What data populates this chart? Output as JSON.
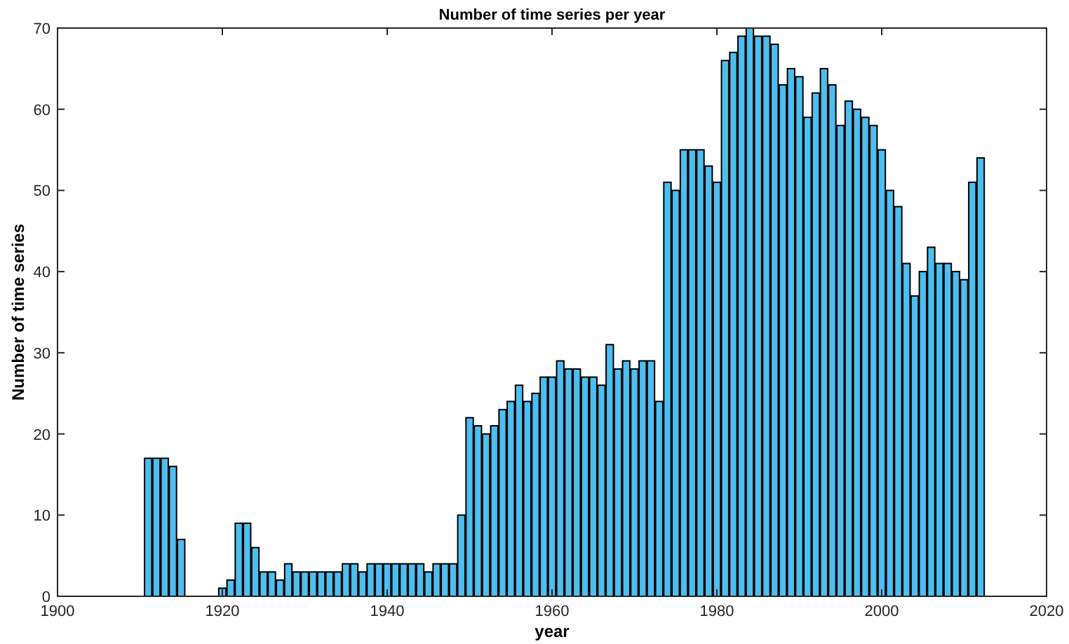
{
  "chart_data": {
    "type": "bar",
    "title": "Number of time series per year",
    "xlabel": "year",
    "ylabel": "Number of time series",
    "x": [
      1911,
      1912,
      1913,
      1914,
      1915,
      1920,
      1921,
      1922,
      1923,
      1924,
      1925,
      1926,
      1927,
      1928,
      1929,
      1930,
      1931,
      1932,
      1933,
      1934,
      1935,
      1936,
      1937,
      1938,
      1939,
      1940,
      1941,
      1942,
      1943,
      1944,
      1945,
      1946,
      1947,
      1948,
      1949,
      1950,
      1951,
      1952,
      1953,
      1954,
      1955,
      1956,
      1957,
      1958,
      1959,
      1960,
      1961,
      1962,
      1963,
      1964,
      1965,
      1966,
      1967,
      1968,
      1969,
      1970,
      1971,
      1972,
      1973,
      1974,
      1975,
      1976,
      1977,
      1978,
      1979,
      1980,
      1981,
      1982,
      1983,
      1984,
      1985,
      1986,
      1987,
      1988,
      1989,
      1990,
      1991,
      1992,
      1993,
      1994,
      1995,
      1996,
      1997,
      1998,
      1999,
      2000,
      2001,
      2002,
      2003,
      2004,
      2005,
      2006,
      2007,
      2008,
      2009,
      2010,
      2011,
      2012
    ],
    "values": [
      17,
      17,
      17,
      16,
      7,
      1,
      2,
      9,
      9,
      6,
      3,
      3,
      2,
      4,
      3,
      3,
      3,
      3,
      3,
      3,
      4,
      4,
      3,
      4,
      4,
      4,
      4,
      4,
      4,
      4,
      3,
      4,
      4,
      4,
      10,
      22,
      21,
      20,
      21,
      23,
      24,
      26,
      24,
      25,
      27,
      27,
      29,
      28,
      28,
      27,
      27,
      26,
      31,
      28,
      29,
      28,
      29,
      29,
      24,
      51,
      50,
      55,
      55,
      55,
      53,
      51,
      66,
      67,
      69,
      70,
      69,
      69,
      68,
      63,
      65,
      64,
      59,
      62,
      65,
      63,
      58,
      61,
      60,
      59,
      58,
      55,
      50,
      48,
      41,
      37,
      40,
      43,
      41,
      41,
      40,
      39,
      51,
      54
    ],
    "color": "#4dbeee",
    "xlim": [
      1900,
      2020
    ],
    "xticks": [
      1900,
      1920,
      1940,
      1960,
      1980,
      2000,
      2020
    ],
    "ylim": [
      0,
      70
    ],
    "yticks": [
      0,
      10,
      20,
      30,
      40,
      50,
      60,
      70
    ]
  }
}
